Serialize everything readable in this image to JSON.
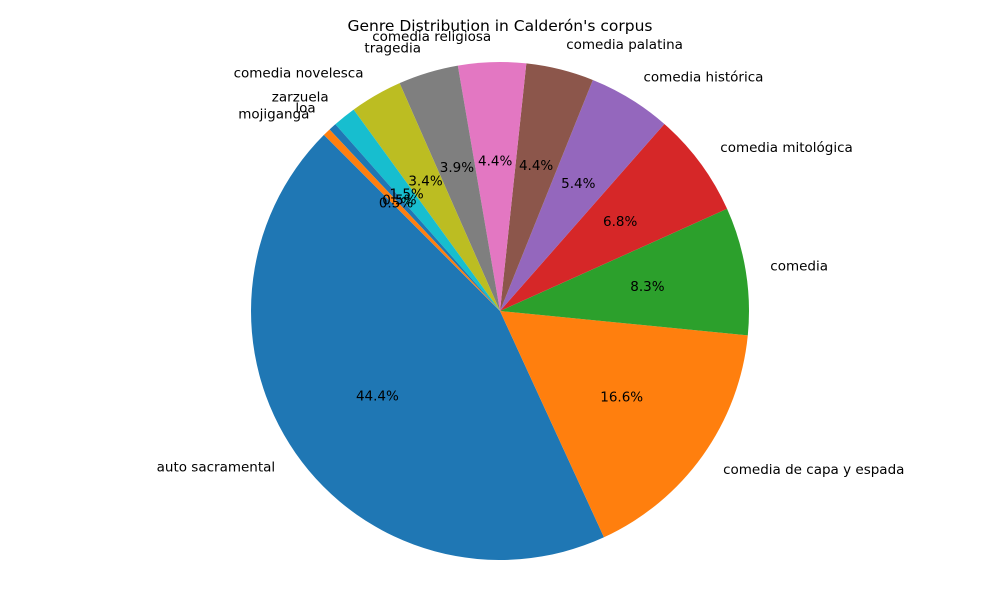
{
  "chart_data": {
    "type": "pie",
    "title": "Genre Distribution in Calderón's corpus",
    "start_angle_deg": 135,
    "direction": "counterclockwise",
    "slices": [
      {
        "label": "auto sacramental",
        "value": 44.4,
        "pct_label": "44.4%",
        "color": "#1f77b4"
      },
      {
        "label": "comedia de capa y espada",
        "value": 16.6,
        "pct_label": "16.6%",
        "color": "#ff7f0e"
      },
      {
        "label": "comedia",
        "value": 8.3,
        "pct_label": "8.3%",
        "color": "#2ca02c"
      },
      {
        "label": "comedia mitológica",
        "value": 6.8,
        "pct_label": "6.8%",
        "color": "#d62728"
      },
      {
        "label": "comedia histórica",
        "value": 5.4,
        "pct_label": "5.4%",
        "color": "#9467bd"
      },
      {
        "label": "comedia palatina",
        "value": 4.4,
        "pct_label": "4.4%",
        "color": "#8c564b"
      },
      {
        "label": "comedia religiosa",
        "value": 4.4,
        "pct_label": "4.4%",
        "color": "#e377c2"
      },
      {
        "label": "tragedia",
        "value": 3.9,
        "pct_label": "3.9%",
        "color": "#7f7f7f"
      },
      {
        "label": "comedia novelesca",
        "value": 3.4,
        "pct_label": "3.4%",
        "color": "#bcbd22"
      },
      {
        "label": "zarzuela",
        "value": 1.5,
        "pct_label": "1.5%",
        "color": "#17becf"
      },
      {
        "label": "loa",
        "value": 0.5,
        "pct_label": "0.5%",
        "color": "#1f77b4"
      },
      {
        "label": "mojiganga",
        "value": 0.5,
        "pct_label": "0.5%",
        "color": "#ff7f0e"
      }
    ]
  }
}
